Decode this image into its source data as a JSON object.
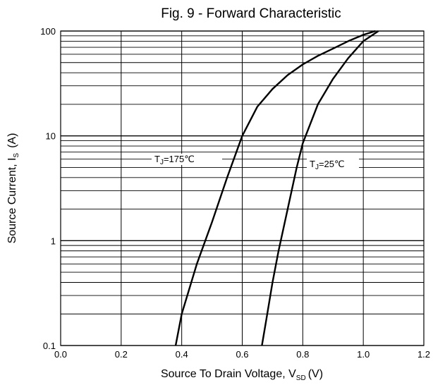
{
  "chart_data": {
    "type": "line",
    "title": "Fig. 9 - Forward Characteristic",
    "xlabel": {
      "main": "Source To Drain Voltage, V",
      "sub": "SD",
      "unit": "(V)"
    },
    "ylabel": {
      "main": "Source Current, I",
      "sub": "S",
      "unit": "(A)"
    },
    "xlim": [
      0.0,
      1.2
    ],
    "ylim": [
      0.1,
      100
    ],
    "yscale": "log",
    "grid": true,
    "xticks": [
      "0.0",
      "0.2",
      "0.4",
      "0.6",
      "0.8",
      "1.0",
      "1.2"
    ],
    "yticks": [
      "0.1",
      "1",
      "10",
      "100"
    ],
    "series": [
      {
        "name": "TJ=175℃",
        "label": {
          "main": "T",
          "sub": "J",
          "rest": "=175℃"
        },
        "x": [
          0.38,
          0.4,
          0.45,
          0.5,
          0.55,
          0.6,
          0.65,
          0.7,
          0.75,
          0.8,
          0.85,
          0.9,
          0.95,
          1.0,
          1.04
        ],
        "y": [
          0.1,
          0.2,
          0.6,
          1.5,
          4.0,
          10,
          19,
          28,
          38,
          48,
          58,
          68,
          80,
          92,
          100
        ]
      },
      {
        "name": "TJ=25℃",
        "label": {
          "main": "T",
          "sub": "J",
          "rest": "=25℃"
        },
        "x": [
          0.665,
          0.68,
          0.7,
          0.72,
          0.75,
          0.78,
          0.8,
          0.85,
          0.9,
          0.95,
          1.0,
          1.05
        ],
        "y": [
          0.1,
          0.18,
          0.4,
          0.8,
          2.0,
          5.0,
          8.5,
          20,
          35,
          55,
          80,
          100
        ]
      }
    ]
  }
}
